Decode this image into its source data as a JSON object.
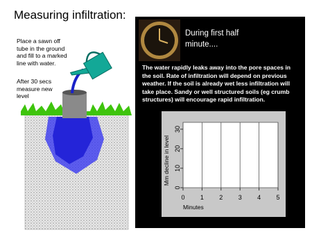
{
  "header": {
    "title": "Measuring infiltration:"
  },
  "instructions": [
    "Place a sawn off tube in the ground and fill to a marked line with water.",
    "After 30 secs measure new level"
  ],
  "panel": {
    "heading": "During first half minute....",
    "text": "The water rapidly leaks away into the pore spaces in the soil. Rate of infiltration will depend on previous weather. If the soil is already wet less infiltration will take place. Sandy or well structured soils (eg crumb structures) will encourage rapid infiltration."
  },
  "chart": {
    "ylabel": "Mm decline in level",
    "xlabel": "Minutes",
    "xlim": [
      0,
      5
    ],
    "xticks": [
      0,
      1,
      2,
      3,
      4,
      5
    ],
    "ylim": [
      0,
      33.5
    ],
    "yticks": [
      0,
      10,
      20,
      30
    ]
  }
}
